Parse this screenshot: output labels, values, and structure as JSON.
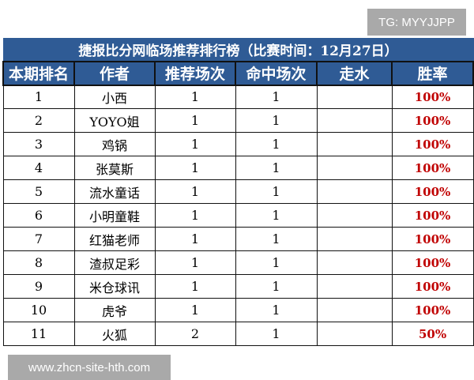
{
  "watermarks": {
    "tg": "TG: MYYJJPP",
    "site": "www.zhcn-site-hth.com"
  },
  "table": {
    "title": "捷报比分网临场推荐排行榜（比赛时间：12月27日）",
    "headers": [
      "本期排名",
      "作者",
      "推荐场次",
      "命中场次",
      "走水",
      "胜率"
    ],
    "rows": [
      [
        "1",
        "小西",
        "1",
        "1",
        "",
        "100%"
      ],
      [
        "2",
        "YOYO姐",
        "1",
        "1",
        "",
        "100%"
      ],
      [
        "3",
        "鸡锅",
        "1",
        "1",
        "",
        "100%"
      ],
      [
        "4",
        "张莫斯",
        "1",
        "1",
        "",
        "100%"
      ],
      [
        "5",
        "流水童话",
        "1",
        "1",
        "",
        "100%"
      ],
      [
        "6",
        "小明童鞋",
        "1",
        "1",
        "",
        "100%"
      ],
      [
        "7",
        "红猫老师",
        "1",
        "1",
        "",
        "100%"
      ],
      [
        "8",
        "渣叔足彩",
        "1",
        "1",
        "",
        "100%"
      ],
      [
        "9",
        "米仓球讯",
        "1",
        "1",
        "",
        "100%"
      ],
      [
        "10",
        "虎爷",
        "1",
        "1",
        "",
        "100%"
      ],
      [
        "11",
        "火狐",
        "2",
        "1",
        "",
        "50%"
      ]
    ]
  },
  "colors": {
    "header_bg": "#2f5b95",
    "rate": "#c00000"
  }
}
